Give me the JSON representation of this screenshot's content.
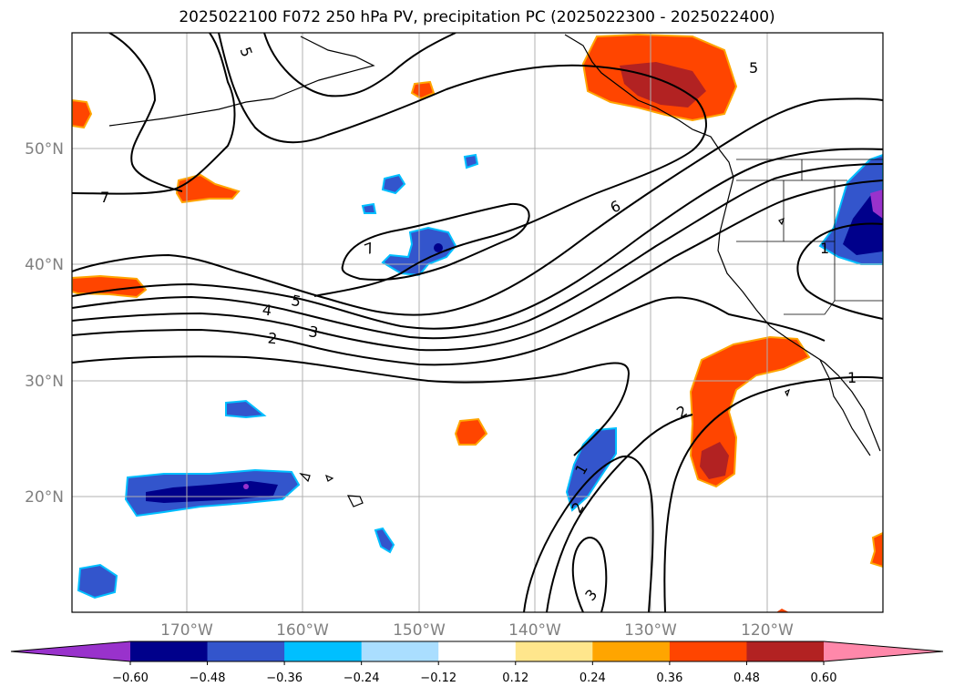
{
  "title": "2025022100 F072 250 hPa PV, precipitation PC (2025022300 - 2025022400)",
  "lat_labels": [
    "50°N",
    "40°N",
    "30°N",
    "20°N"
  ],
  "lon_labels": [
    "170°W",
    "160°W",
    "150°W",
    "140°W",
    "130°W",
    "120°W"
  ],
  "contour_labels": [
    "5",
    "5",
    "7",
    "7",
    "6",
    "5",
    "4",
    "3",
    "2",
    "1",
    "1",
    "2",
    "1",
    "2",
    "3"
  ],
  "colorbar": {
    "colors": [
      "#9932cc",
      "#00008b",
      "#3355cc",
      "#00bfff",
      "#aadeff",
      "#ffffff",
      "#ffe68c",
      "#ffa500",
      "#ff4500",
      "#b22222",
      "#ff88aa"
    ],
    "tick_labels": [
      "−0.60",
      "−0.48",
      "−0.36",
      "−0.24",
      "−0.12",
      "0.12",
      "0.24",
      "0.36",
      "0.48",
      "0.60"
    ]
  },
  "colors": {
    "coast": "#000000",
    "grid": "#b0b0b0",
    "contour": "#000000"
  }
}
